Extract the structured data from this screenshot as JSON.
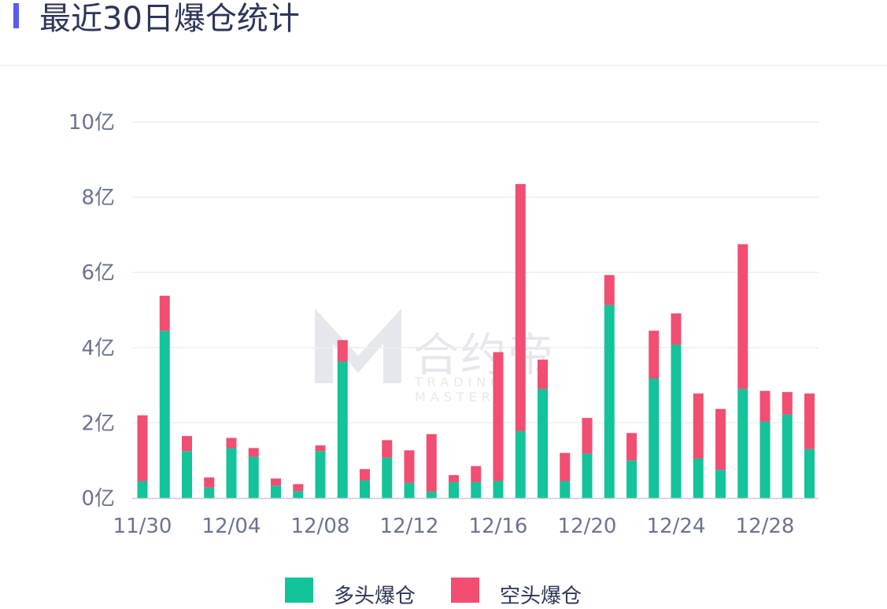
{
  "header": {
    "title": "最近30日爆仓统计"
  },
  "watermark": {
    "text": "合约帝",
    "sub": "TRADING MASTER"
  },
  "colors": {
    "accent": "#5a5cf0",
    "long": "#13c39a",
    "short": "#f14e72"
  },
  "chart_data": {
    "type": "bar",
    "stacked": true,
    "unit": "亿",
    "ylim": [
      0,
      10
    ],
    "yticks": [
      "0亿",
      "2亿",
      "4亿",
      "6亿",
      "8亿",
      "10亿"
    ],
    "xticks": [
      "11/30",
      "12/04",
      "12/08",
      "12/12",
      "12/16",
      "12/20",
      "12/24",
      "12/28"
    ],
    "grid": true,
    "legend_position": "bottom",
    "categories": [
      "11/30",
      "12/01",
      "12/02",
      "12/03",
      "12/04",
      "12/05",
      "12/06",
      "12/07",
      "12/08",
      "12/09",
      "12/10",
      "12/11",
      "12/12",
      "12/13",
      "12/14",
      "12/15",
      "12/16",
      "12/17",
      "12/18",
      "12/19",
      "12/20",
      "12/21",
      "12/22",
      "12/23",
      "12/24",
      "12/25",
      "12/26",
      "12/27",
      "12/28",
      "12/29",
      "12/30"
    ],
    "series": [
      {
        "name": "多头爆仓",
        "color": "#13c39a",
        "values": [
          0.45,
          4.45,
          1.25,
          0.28,
          1.33,
          1.1,
          0.33,
          0.18,
          1.25,
          3.63,
          0.47,
          1.07,
          0.4,
          0.17,
          0.42,
          0.42,
          0.45,
          1.78,
          2.9,
          0.45,
          1.18,
          5.13,
          1.0,
          3.18,
          4.08,
          1.05,
          0.75,
          2.9,
          2.03,
          2.22,
          1.3
        ]
      },
      {
        "name": "空头爆仓",
        "color": "#f14e72",
        "values": [
          1.75,
          0.93,
          0.4,
          0.27,
          0.27,
          0.23,
          0.19,
          0.19,
          0.15,
          0.57,
          0.3,
          0.47,
          0.87,
          1.53,
          0.19,
          0.43,
          3.43,
          6.57,
          0.78,
          0.75,
          0.95,
          0.8,
          0.73,
          1.27,
          0.83,
          1.73,
          1.62,
          3.85,
          0.82,
          0.6,
          1.48
        ]
      }
    ]
  }
}
